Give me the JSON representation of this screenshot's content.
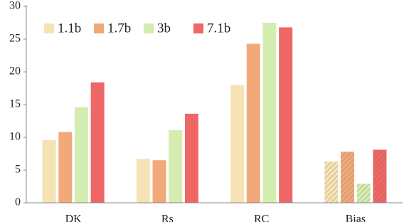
{
  "chart_data": {
    "type": "bar",
    "categories": [
      "DK",
      "Rs",
      "RC",
      "Bias"
    ],
    "series": [
      {
        "name": "1.1b",
        "color": "#f5e3b5",
        "values": [
          9.6,
          6.7,
          18.0,
          6.3
        ]
      },
      {
        "name": "1.7b",
        "color": "#f2a97a",
        "values": [
          10.8,
          6.5,
          24.3,
          7.8
        ]
      },
      {
        "name": "3b",
        "color": "#d4ecb0",
        "values": [
          14.6,
          11.1,
          27.5,
          2.9
        ]
      },
      {
        "name": "7.1b",
        "color": "#ef6666",
        "values": [
          18.4,
          13.6,
          26.8,
          8.1
        ]
      }
    ],
    "hatched": [
      false,
      false,
      false,
      true
    ],
    "ylim": [
      0,
      30
    ],
    "yticks": [
      0,
      5,
      10,
      15,
      20,
      25,
      30
    ],
    "grid": false,
    "legend": "top-left"
  }
}
